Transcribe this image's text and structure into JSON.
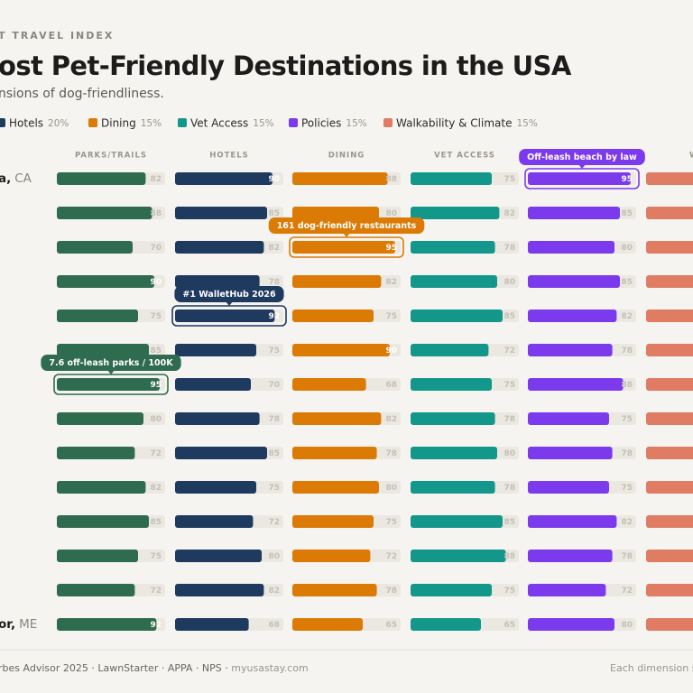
{
  "chart_data": {
    "type": "bar-matrix",
    "kicker": "T TRAVEL INDEX",
    "title": "ost Pet-Friendly Destinations in the USA",
    "subtitle": "nsions of dog-friendliness.",
    "categories": [
      "a,",
      null,
      null,
      null,
      null,
      null,
      null,
      null,
      null,
      null,
      null,
      null,
      null,
      "or,"
    ],
    "states": [
      "CA",
      null,
      null,
      null,
      null,
      null,
      null,
      null,
      null,
      null,
      null,
      null,
      null,
      "ME"
    ],
    "xlim": [
      0,
      100
    ],
    "series": [
      {
        "header": "PARKS/TRAILS",
        "color": "#2f6b4f",
        "values": [
          82,
          88,
          70,
          90,
          75,
          85,
          95,
          80,
          72,
          82,
          85,
          75,
          72,
          92
        ],
        "notes": [
          null,
          null,
          null,
          null,
          null,
          null,
          "7.6 off-leash parks / 100K",
          null,
          null,
          null,
          null,
          null,
          null,
          null
        ]
      },
      {
        "header": "HOTELS",
        "name": "Hotels",
        "weight": "20%",
        "color": "#1f3a5f",
        "values": [
          90,
          85,
          82,
          78,
          92,
          75,
          70,
          78,
          85,
          75,
          72,
          80,
          82,
          68
        ],
        "notes": [
          null,
          null,
          null,
          null,
          "#1 WalletHub 2026",
          null,
          null,
          null,
          null,
          null,
          null,
          null,
          null,
          null
        ]
      },
      {
        "header": "DINING",
        "name": "Dining",
        "weight": "15%",
        "color": "#dc7a06",
        "values": [
          88,
          80,
          95,
          82,
          75,
          90,
          68,
          82,
          78,
          80,
          75,
          72,
          78,
          65
        ],
        "notes": [
          null,
          null,
          "161 dog-friendly restaurants",
          null,
          null,
          null,
          null,
          null,
          null,
          null,
          null,
          null,
          null,
          null
        ]
      },
      {
        "header": "VET ACCESS",
        "name": "Vet Access",
        "weight": "15%",
        "color": "#14978b",
        "values": [
          75,
          82,
          78,
          80,
          85,
          72,
          75,
          78,
          80,
          78,
          85,
          88,
          75,
          65
        ],
        "notes": [
          null,
          null,
          null,
          null,
          null,
          null,
          null,
          null,
          null,
          null,
          null,
          null,
          null,
          null
        ]
      },
      {
        "name": "Policies",
        "weight": "15%",
        "color": "#7c3aed",
        "values": [
          95,
          85,
          80,
          85,
          82,
          78,
          88,
          75,
          78,
          75,
          82,
          78,
          72,
          80
        ],
        "notes": [
          "Off-leash beach by law",
          null,
          null,
          null,
          null,
          null,
          null,
          null,
          null,
          null,
          null,
          null,
          null,
          null
        ]
      },
      {
        "header": "WAL",
        "name": "Walkability & Climate",
        "weight": "15%",
        "color": "#e07c63"
      }
    ],
    "footer": {
      "sources": "rbes Advisor 2025 · LawnStarter · APPA · NPS · ",
      "site": "myusastay.com",
      "note": "Each dimension sc"
    }
  }
}
